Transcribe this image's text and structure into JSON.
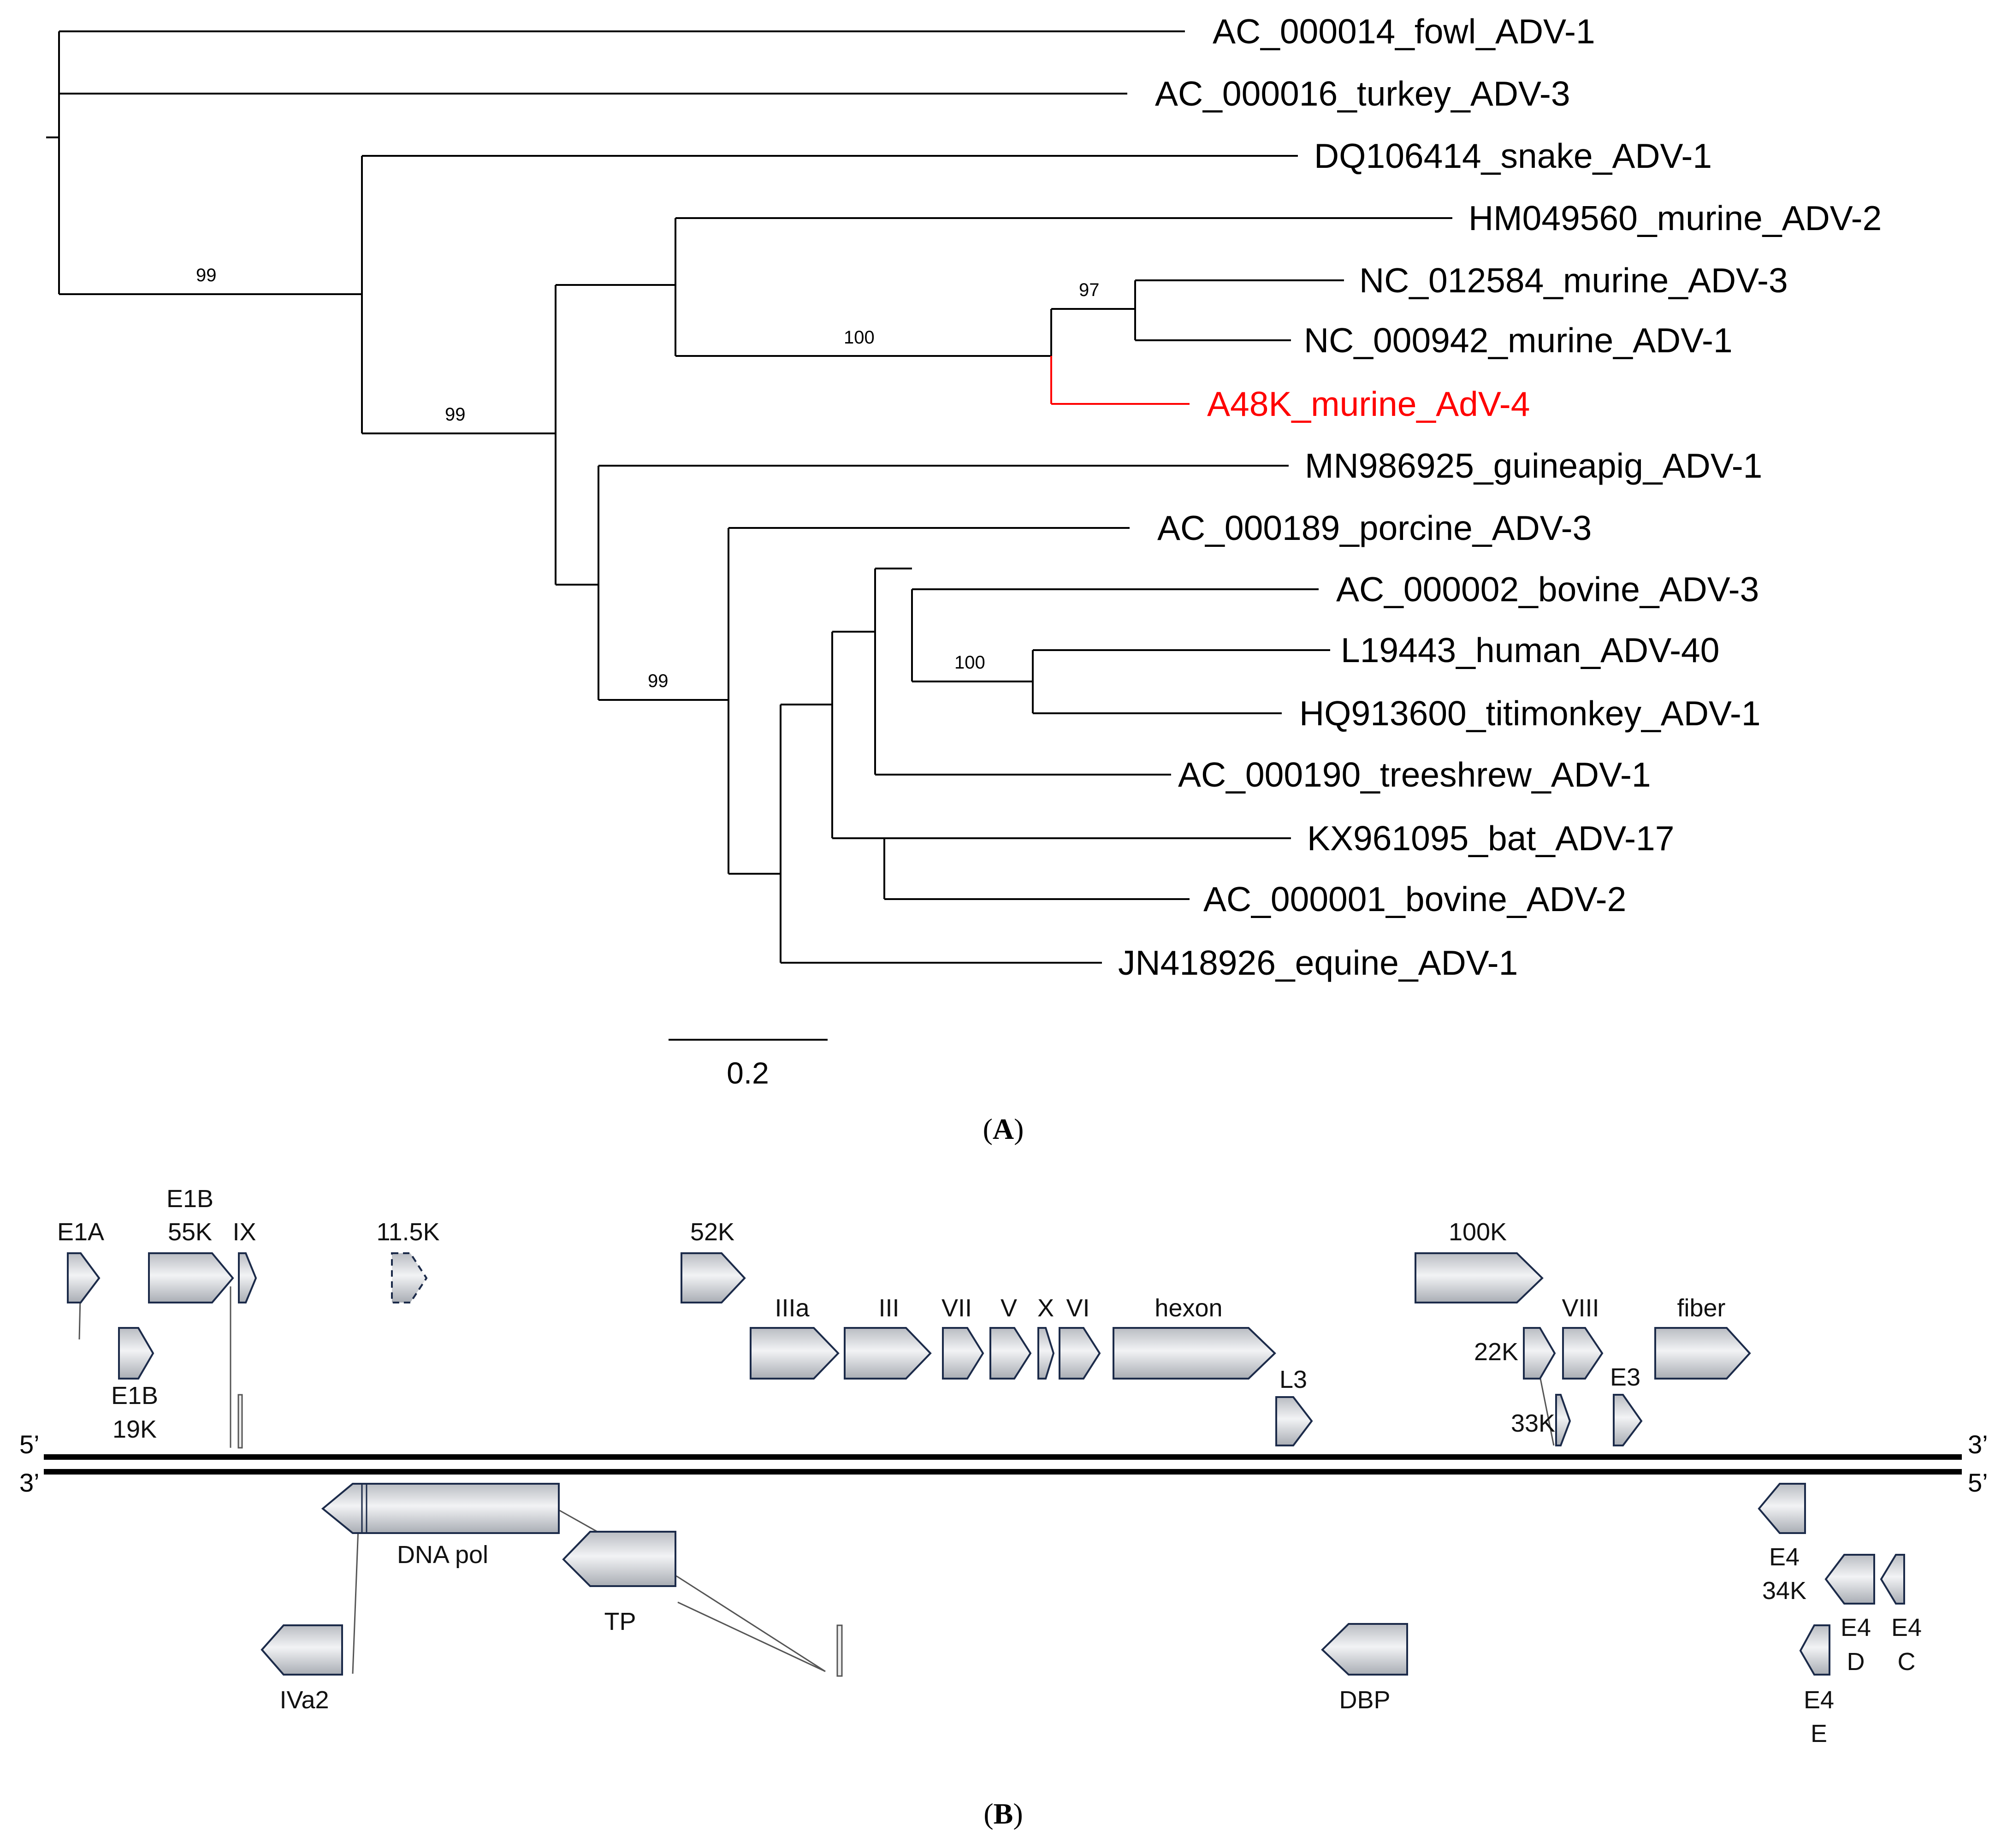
{
  "panel_a": {
    "label": "A",
    "scale_label": "0.2",
    "taxa": [
      {
        "id": "t1",
        "name": "AC_000014_fowl_ADV-1"
      },
      {
        "id": "t2",
        "name": "AC_000016_turkey_ADV-3"
      },
      {
        "id": "t3",
        "name": "DQ106414_snake_ADV-1"
      },
      {
        "id": "t4",
        "name": "HM049560_murine_ADV-2"
      },
      {
        "id": "t5",
        "name": "NC_012584_murine_ADV-3"
      },
      {
        "id": "t6",
        "name": "NC_000942_murine_ADV-1"
      },
      {
        "id": "t7",
        "name": "A48K_murine_AdV-4",
        "highlight": true
      },
      {
        "id": "t8",
        "name": "MN986925_guineapig_ADV-1"
      },
      {
        "id": "t9",
        "name": "AC_000189_porcine_ADV-3"
      },
      {
        "id": "t10",
        "name": "AC_000002_bovine_ADV-3"
      },
      {
        "id": "t11",
        "name": "L19443_human_ADV-40"
      },
      {
        "id": "t12",
        "name": "HQ913600_titimonkey_ADV-1"
      },
      {
        "id": "t13",
        "name": "AC_000190_treeshrew_ADV-1"
      },
      {
        "id": "t14",
        "name": "KX961095_bat_ADV-17"
      },
      {
        "id": "t15",
        "name": "AC_000001_bovine_ADV-2"
      },
      {
        "id": "t16",
        "name": "JN418926_equine_ADV-1"
      }
    ],
    "bootstrap": [
      {
        "id": "b1",
        "value": "99"
      },
      {
        "id": "b2",
        "value": "99"
      },
      {
        "id": "b3",
        "value": "100"
      },
      {
        "id": "b4",
        "value": "97"
      },
      {
        "id": "b5",
        "value": "99"
      },
      {
        "id": "b6",
        "value": "100"
      }
    ],
    "highlight_color": "#ff0000"
  },
  "panel_b": {
    "label": "B",
    "strand_labels": {
      "top_left": "5’",
      "top_right": "3’",
      "bottom_left": "3’",
      "bottom_right": "5’"
    },
    "genes": [
      {
        "id": "E1A",
        "label": "E1A"
      },
      {
        "id": "E1B55K",
        "label_line1": "E1B",
        "label_line2": "55K"
      },
      {
        "id": "IX",
        "label": "IX"
      },
      {
        "id": "11.5K",
        "label": "11.5K",
        "style": "dashed"
      },
      {
        "id": "52K",
        "label": "52K"
      },
      {
        "id": "100K",
        "label": "100K"
      },
      {
        "id": "E1B19K",
        "label_line1": "E1B",
        "label_line2": "19K"
      },
      {
        "id": "IIIa",
        "label": "IIIa"
      },
      {
        "id": "III",
        "label": "III"
      },
      {
        "id": "VII",
        "label": "VII"
      },
      {
        "id": "V",
        "label": "V"
      },
      {
        "id": "X",
        "label": "X"
      },
      {
        "id": "VI",
        "label": "VI"
      },
      {
        "id": "hexon",
        "label": "hexon"
      },
      {
        "id": "L3",
        "label": "L3"
      },
      {
        "id": "22K",
        "label": "22K"
      },
      {
        "id": "VIII",
        "label": "VIII"
      },
      {
        "id": "fiber",
        "label": "fiber"
      },
      {
        "id": "33K",
        "label": "33K"
      },
      {
        "id": "E3",
        "label": "E3"
      },
      {
        "id": "DNApol",
        "label": "DNA pol"
      },
      {
        "id": "TP",
        "label": "TP"
      },
      {
        "id": "IVa2",
        "label": "IVa2"
      },
      {
        "id": "DBP",
        "label": "DBP"
      },
      {
        "id": "E434K",
        "label_line1": "E4",
        "label_line2": "34K"
      },
      {
        "id": "E4D",
        "label_line1": "E4",
        "label_line2": "D"
      },
      {
        "id": "E4C",
        "label_line1": "E4",
        "label_line2": "C"
      },
      {
        "id": "E4E",
        "label_line1": "E4",
        "label_line2": "E"
      }
    ],
    "gene_fill_light": "#f2f3f5",
    "gene_fill_dark": "#b9bcc2",
    "gene_stroke": "#1c2b4a"
  }
}
